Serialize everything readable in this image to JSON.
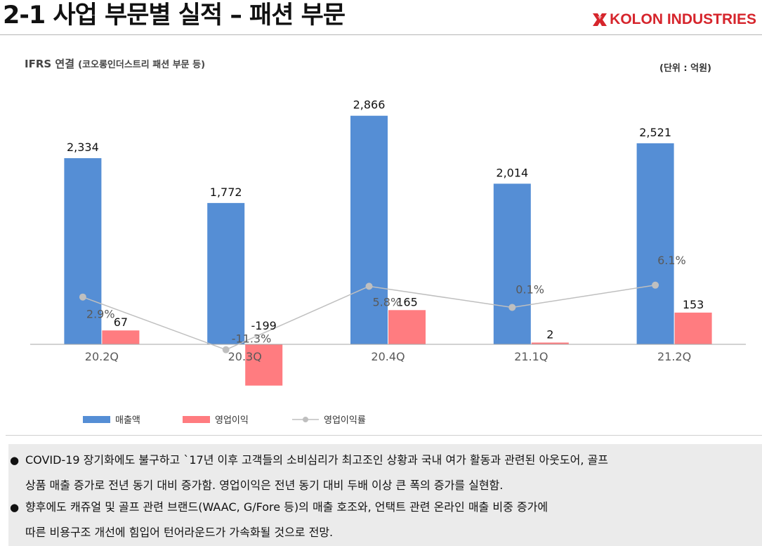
{
  "header": {
    "title": "2-1 사업 부문별 실적 – 패션 부문",
    "logo_text": "KOLON INDUSTRIES",
    "logo_color": "#d6252c"
  },
  "subtitle": {
    "main": "IFRS 연결",
    "detail": "(코오롱인더스트리 패션 부문 등)"
  },
  "unit_label": "(단위 : 억원)",
  "chart_data": {
    "type": "bar",
    "categories": [
      "20.2Q",
      "20.3Q",
      "20.4Q",
      "21.1Q",
      "21.2Q"
    ],
    "series": [
      {
        "name": "매출액",
        "type": "bar",
        "color": "#558ed5",
        "values": [
          2334,
          1772,
          2866,
          2014,
          2521
        ],
        "labels": [
          "2,334",
          "1,772",
          "2,866",
          "2,014",
          "2,521"
        ]
      },
      {
        "name": "영업이익",
        "type": "bar",
        "color": "#ff7c80",
        "values": [
          67,
          -199,
          165,
          2,
          153
        ],
        "labels": [
          "67",
          "-199",
          "165",
          "2",
          "153"
        ]
      },
      {
        "name": "영업이익률",
        "type": "line",
        "color": "#bfbfbf",
        "values": [
          2.9,
          -11.3,
          5.8,
          0.1,
          6.1
        ],
        "labels": [
          "2.9%",
          "-11.3%",
          "5.8%",
          "0.1%",
          "6.1%"
        ]
      }
    ],
    "legend_position": "bottom-left",
    "grid": false
  },
  "notes": [
    {
      "bullet": "●",
      "line1": "COVID-19 장기화에도 불구하고 `17년 이후 고객들의 소비심리가 최고조인 상황과 국내 여가 활동과 관련된 아웃도어, 골프",
      "line2": "상품 매출 증가로 전년 동기 대비 증가함. 영업이익은 전년 동기 대비 두배 이상 큰 폭의 증가를 실현함."
    },
    {
      "bullet": "●",
      "line1": "향후에도 캐쥬얼 및 골프 관련 브랜드(WAAC, G/Fore 등)의 매출 호조와, 언택트 관련 온라인 매출 비중 증가에",
      "line2": "따른 비용구조 개선에 힘입어 턴어라운드가 가속화될 것으로 전망."
    }
  ]
}
